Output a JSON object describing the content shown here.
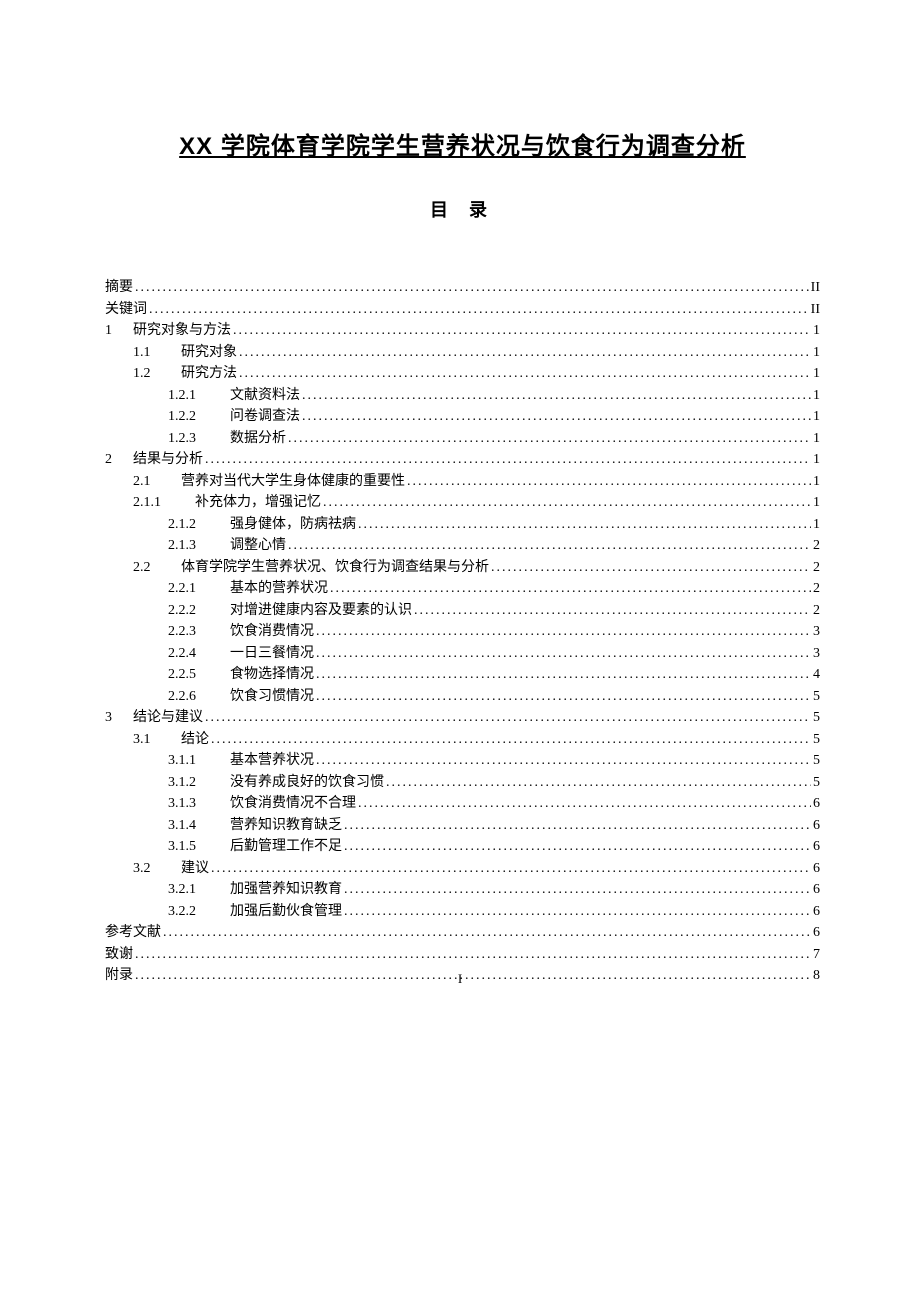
{
  "title": "XX 学院体育学院学生营养状况与饮食行为调查分析",
  "toc_label": "目  录",
  "footer_page": "I",
  "entries": [
    {
      "indent": 0,
      "num": "",
      "text": "摘要",
      "page": "II"
    },
    {
      "indent": 0,
      "num": "",
      "text": "关键词",
      "page": "II"
    },
    {
      "indent": 0,
      "num": "1",
      "numClass": "w-num-1",
      "text": "研究对象与方法",
      "page": "1"
    },
    {
      "indent": 1,
      "num": "1.1",
      "numClass": "w-num-2",
      "text": "研究对象 ",
      "page": "1"
    },
    {
      "indent": 1,
      "num": "1.2",
      "numClass": "w-num-2",
      "text": "研究方法 ",
      "page": "1"
    },
    {
      "indent": 2,
      "num": "1.2.1",
      "numClass": "w-num-3",
      "text": "文献资料法 ",
      "page": "1"
    },
    {
      "indent": 2,
      "num": "1.2.2",
      "numClass": "w-num-3",
      "text": "问卷调查法 ",
      "page": "1"
    },
    {
      "indent": 2,
      "num": "1.2.3",
      "numClass": "w-num-3",
      "text": "数据分析 ",
      "page": "1"
    },
    {
      "indent": 0,
      "num": "2",
      "numClass": "w-num-1",
      "text": "结果与分析",
      "page": "1"
    },
    {
      "indent": 1,
      "num": "2.1",
      "numClass": "w-num-2",
      "text": "营养对当代大学生身体健康的重要性 ",
      "page": "1"
    },
    {
      "indent": 1,
      "num": "2.1.1",
      "numClass": "w-num-3",
      "text": "补充体力，增强记忆 ",
      "page": "1"
    },
    {
      "indent": 2,
      "num": "2.1.2",
      "numClass": "w-num-3",
      "text": "强身健体，防病祛病 ",
      "page": "1"
    },
    {
      "indent": 2,
      "num": "2.1.3",
      "numClass": "w-num-3",
      "text": "调整心情 ",
      "page": "2"
    },
    {
      "indent": 1,
      "num": "2.2",
      "numClass": "w-num-2",
      "text": "体育学院学生营养状况、饮食行为调查结果与分析 ",
      "page": "2"
    },
    {
      "indent": 2,
      "num": "2.2.1",
      "numClass": "w-num-3",
      "text": "基本的营养状况 ",
      "page": "2"
    },
    {
      "indent": 2,
      "num": "2.2.2",
      "numClass": "w-num-3",
      "text": "对增进健康内容及要素的认识 ",
      "page": "2"
    },
    {
      "indent": 2,
      "num": "2.2.3",
      "numClass": "w-num-3",
      "text": "饮食消费情况 ",
      "page": "3"
    },
    {
      "indent": 2,
      "num": "2.2.4",
      "numClass": "w-num-3",
      "text": "一日三餐情况 ",
      "page": "3"
    },
    {
      "indent": 2,
      "num": "2.2.5",
      "numClass": "w-num-3",
      "text": "食物选择情况 ",
      "page": "4"
    },
    {
      "indent": 2,
      "num": "2.2.6",
      "numClass": "w-num-3",
      "text": "饮食习惯情况 ",
      "page": "5"
    },
    {
      "indent": 0,
      "num": "3",
      "numClass": "w-num-1",
      "text": "结论与建议",
      "page": "5"
    },
    {
      "indent": 1,
      "num": "3.1",
      "numClass": "w-num-2",
      "text": "结论 ",
      "page": "5"
    },
    {
      "indent": 2,
      "num": "3.1.1",
      "numClass": "w-num-3",
      "text": "基本营养状况 ",
      "page": "5",
      "numStyle": "letter-spacing:0"
    },
    {
      "indent": 2,
      "num": "3.1.2",
      "numClass": "w-num-3",
      "text": "没有养成良好的饮食习惯 ",
      "page": "5"
    },
    {
      "indent": 2,
      "num": "3.1.3",
      "numClass": "w-num-3",
      "text": "饮食消费情况不合理 ",
      "page": "6"
    },
    {
      "indent": 2,
      "num": "3.1.4",
      "numClass": "w-num-3",
      "text": "营养知识教育缺乏 ",
      "page": "6"
    },
    {
      "indent": 2,
      "num": "3.1.5",
      "numClass": "w-num-3",
      "text": "后勤管理工作不足 ",
      "page": "6"
    },
    {
      "indent": 1,
      "num": "3.2",
      "numClass": "w-num-2",
      "text": "建议 ",
      "page": "6"
    },
    {
      "indent": 2,
      "num": "3.2.1",
      "numClass": "w-num-3",
      "text": "加强营养知识教育 ",
      "page": "6"
    },
    {
      "indent": 2,
      "num": "3.2.2",
      "numClass": "w-num-3",
      "text": "加强后勤伙食管理 ",
      "page": "6"
    },
    {
      "indent": 0,
      "num": "",
      "text": "参考文献",
      "page": "6"
    },
    {
      "indent": 0,
      "num": "",
      "text": "致谢",
      "page": "7"
    },
    {
      "indent": 0,
      "num": "",
      "text": "附录",
      "page": "8"
    }
  ]
}
